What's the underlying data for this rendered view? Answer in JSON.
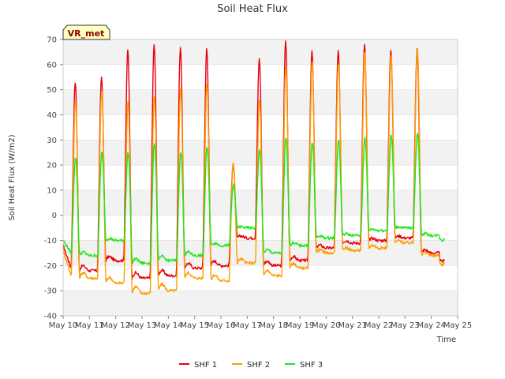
{
  "chart_data": {
    "type": "line",
    "title": "Soil Heat Flux",
    "xlabel": "Time",
    "ylabel": "Soil Heat Flux (W/m2)",
    "badge": "VR_met",
    "xlim": [
      "May 10",
      "May 25"
    ],
    "ylim": [
      -40,
      70
    ],
    "x_ticks": [
      "May 10",
      "May 11",
      "May 12",
      "May 13",
      "May 14",
      "May 15",
      "May 16",
      "May 17",
      "May 18",
      "May 19",
      "May 20",
      "May 21",
      "May 22",
      "May 23",
      "May 24",
      "May 25"
    ],
    "y_ticks": [
      -40,
      -30,
      -20,
      -10,
      0,
      10,
      20,
      30,
      40,
      50,
      60,
      70
    ],
    "grid": "horizontal bands",
    "legend_position": "bottom",
    "days": [
      "May 10",
      "May 11",
      "May 12",
      "May 13",
      "May 14",
      "May 15",
      "May 16",
      "May 17",
      "May 18",
      "May 19",
      "May 20",
      "May 21",
      "May 22",
      "May 23",
      "May 24"
    ],
    "series": [
      {
        "name": "SHF 1",
        "color": "#e8000b",
        "start": -12,
        "daily_min": [
          -21,
          -22,
          -18,
          -25,
          -24,
          -21,
          -20,
          -9,
          -20,
          -18,
          -13,
          -11,
          -10,
          -9,
          -15
        ],
        "daily_max": [
          53,
          55,
          66,
          68,
          67,
          66,
          20,
          62,
          69,
          65,
          65,
          68,
          66,
          66
        ]
      },
      {
        "name": "SHF 2",
        "color": "#ff9e00",
        "start": -14,
        "daily_min": [
          -24,
          -25,
          -27,
          -31,
          -30,
          -25,
          -26,
          -19,
          -24,
          -21,
          -15,
          -14,
          -13,
          -11,
          -16
        ],
        "daily_max": [
          46,
          50,
          46,
          48,
          51,
          53,
          21,
          46,
          60,
          61,
          61,
          65,
          64,
          67
        ]
      },
      {
        "name": "SHF 3",
        "color": "#1ee81e",
        "start": -10,
        "daily_min": [
          -15,
          -16,
          -10,
          -19,
          -18,
          -16,
          -12,
          -5,
          -15,
          -12,
          -9,
          -8,
          -6,
          -5,
          -8
        ],
        "daily_max": [
          23,
          25,
          25,
          29,
          25,
          27,
          12,
          26,
          31,
          29,
          30,
          31,
          32,
          33
        ]
      }
    ]
  }
}
